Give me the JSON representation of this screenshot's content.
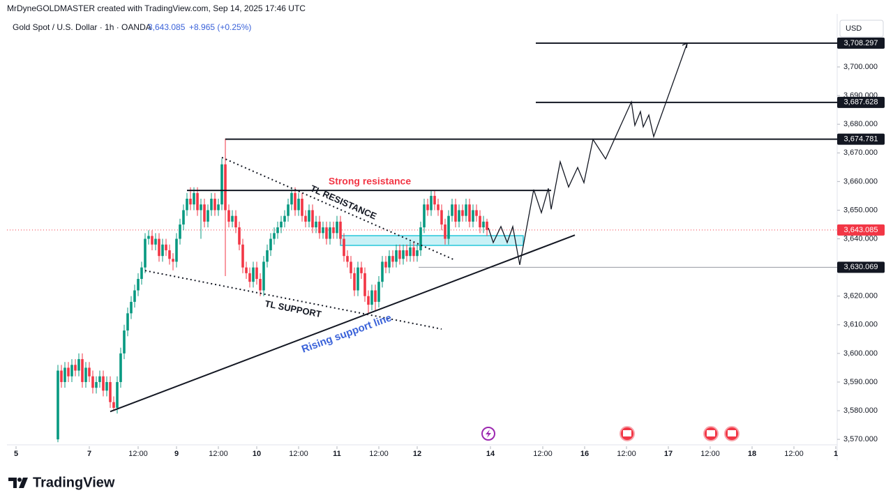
{
  "header": {
    "credit": "MrDyneGOLDMASTER created with TradingView.com, Sep 14, 2025 17:46 UTC",
    "symbol": "Gold Spot / U.S. Dollar · 1h · OANDA",
    "price": "3,643.085",
    "change": "+8.965 (+0.25%)",
    "currency": "USD"
  },
  "footer": {
    "logo": "TradingView"
  },
  "chart_data": {
    "type": "candlestick",
    "up_color": "#089981",
    "down_color": "#f23645",
    "xlim": [
      -2.6,
      235.4
    ],
    "ylim": [
      3567.6,
      3718.5
    ],
    "xticks": [
      {
        "value": 0,
        "label": "5"
      },
      {
        "value": 21,
        "label": "7"
      },
      {
        "value": 35,
        "label": "12:00"
      },
      {
        "value": 46,
        "label": "9"
      },
      {
        "value": 58,
        "label": "12:00"
      },
      {
        "value": 69,
        "label": "10"
      },
      {
        "value": 81,
        "label": "12:00"
      },
      {
        "value": 92,
        "label": "11"
      },
      {
        "value": 104,
        "label": "12:00"
      },
      {
        "value": 115,
        "label": "12"
      },
      {
        "value": 136,
        "label": "14"
      },
      {
        "value": 151,
        "label": "12:00"
      },
      {
        "value": 163,
        "label": "16"
      },
      {
        "value": 175,
        "label": "12:00"
      },
      {
        "value": 187,
        "label": "17"
      },
      {
        "value": 199,
        "label": "12:00"
      },
      {
        "value": 211,
        "label": "18"
      },
      {
        "value": 223,
        "label": "12:00"
      },
      {
        "value": 235,
        "label": "1"
      }
    ],
    "yticks": [
      {
        "value": 3570,
        "label": "3,570.000"
      },
      {
        "value": 3580,
        "label": "3,580.000"
      },
      {
        "value": 3590,
        "label": "3,590.000"
      },
      {
        "value": 3600,
        "label": "3,600.000"
      },
      {
        "value": 3610,
        "label": "3,610.000"
      },
      {
        "value": 3620,
        "label": "3,620.000"
      },
      {
        "value": 3630,
        "label": "3,630.000"
      },
      {
        "value": 3640,
        "label": "3,640.000"
      },
      {
        "value": 3650,
        "label": "3,650.000"
      },
      {
        "value": 3660,
        "label": "3,660.000"
      },
      {
        "value": 3670,
        "label": "3,670.000"
      },
      {
        "value": 3680,
        "label": "3,680.000"
      },
      {
        "value": 3690,
        "label": "3,690.000"
      },
      {
        "value": 3700,
        "label": "3,700.000"
      }
    ],
    "candles": [
      [
        12,
        3570,
        3596,
        3569,
        3594
      ],
      [
        13,
        3594,
        3596,
        3588,
        3590
      ],
      [
        14,
        3590,
        3597,
        3588,
        3595
      ],
      [
        15,
        3595,
        3597,
        3590,
        3592
      ],
      [
        16,
        3592,
        3598,
        3590,
        3596
      ],
      [
        17,
        3596,
        3598,
        3592,
        3594
      ],
      [
        18,
        3594,
        3600,
        3592,
        3598
      ],
      [
        19,
        3598,
        3600,
        3588,
        3590
      ],
      [
        20,
        3590,
        3597,
        3588,
        3595
      ],
      [
        21,
        3595,
        3597,
        3590,
        3592
      ],
      [
        22,
        3592,
        3594,
        3586,
        3588
      ],
      [
        23,
        3588,
        3592,
        3586,
        3590
      ],
      [
        24,
        3590,
        3594,
        3588,
        3592
      ],
      [
        25,
        3592,
        3594,
        3585,
        3587
      ],
      [
        26,
        3587,
        3592,
        3585,
        3590
      ],
      [
        27,
        3590,
        3592,
        3581,
        3583
      ],
      [
        28,
        3583,
        3585,
        3580,
        3581
      ],
      [
        29,
        3581,
        3592,
        3579,
        3590
      ],
      [
        30,
        3590,
        3602,
        3588,
        3600
      ],
      [
        31,
        3600,
        3610,
        3598,
        3608
      ],
      [
        32,
        3608,
        3616,
        3606,
        3614
      ],
      [
        33,
        3614,
        3620,
        3612,
        3618
      ],
      [
        34,
        3618,
        3624,
        3616,
        3622
      ],
      [
        35,
        3622,
        3628,
        3620,
        3626
      ],
      [
        36,
        3626,
        3632,
        3624,
        3630
      ],
      [
        37,
        3630,
        3642,
        3628,
        3640
      ],
      [
        38,
        3640,
        3643,
        3638,
        3641
      ],
      [
        39,
        3641,
        3643,
        3636,
        3638
      ],
      [
        40,
        3638,
        3642,
        3636,
        3640
      ],
      [
        41,
        3640,
        3642,
        3632,
        3634
      ],
      [
        42,
        3634,
        3640,
        3632,
        3638
      ],
      [
        43,
        3638,
        3640,
        3634,
        3636
      ],
      [
        44,
        3636,
        3638,
        3631,
        3633
      ],
      [
        45,
        3633,
        3635,
        3629,
        3632
      ],
      [
        46,
        3632,
        3642,
        3630,
        3640
      ],
      [
        47,
        3640,
        3647,
        3638,
        3645
      ],
      [
        48,
        3645,
        3652,
        3643,
        3650
      ],
      [
        49,
        3650,
        3656,
        3648,
        3654
      ],
      [
        50,
        3654,
        3658,
        3650,
        3652
      ],
      [
        51,
        3652,
        3658,
        3650,
        3656
      ],
      [
        52,
        3656,
        3658,
        3648,
        3650
      ],
      [
        53,
        3650,
        3654,
        3640,
        3652
      ],
      [
        54,
        3652,
        3654,
        3644,
        3646
      ],
      [
        55,
        3646,
        3652,
        3644,
        3650
      ],
      [
        56,
        3650,
        3656,
        3648,
        3654
      ],
      [
        57,
        3654,
        3656,
        3648,
        3650
      ],
      [
        58,
        3650,
        3654,
        3648,
        3652
      ],
      [
        59,
        3652,
        3668,
        3650,
        3666
      ],
      [
        60,
        3666,
        3675,
        3627,
        3650
      ],
      [
        61,
        3650,
        3652,
        3644,
        3646
      ],
      [
        62,
        3646,
        3650,
        3644,
        3648
      ],
      [
        63,
        3648,
        3650,
        3642,
        3644
      ],
      [
        64,
        3644,
        3646,
        3636,
        3638
      ],
      [
        65,
        3638,
        3640,
        3628,
        3630
      ],
      [
        66,
        3630,
        3632,
        3626,
        3628
      ],
      [
        67,
        3628,
        3630,
        3623,
        3625
      ],
      [
        68,
        3625,
        3632,
        3623,
        3630
      ],
      [
        69,
        3630,
        3632,
        3624,
        3626
      ],
      [
        70,
        3626,
        3628,
        3620,
        3622
      ],
      [
        71,
        3622,
        3634,
        3620,
        3632
      ],
      [
        72,
        3632,
        3638,
        3630,
        3636
      ],
      [
        73,
        3636,
        3642,
        3634,
        3640
      ],
      [
        74,
        3640,
        3644,
        3638,
        3642
      ],
      [
        75,
        3642,
        3646,
        3640,
        3644
      ],
      [
        76,
        3644,
        3648,
        3642,
        3646
      ],
      [
        77,
        3646,
        3650,
        3644,
        3648
      ],
      [
        78,
        3648,
        3654,
        3646,
        3652
      ],
      [
        79,
        3652,
        3658,
        3650,
        3656
      ],
      [
        80,
        3656,
        3658,
        3648,
        3650
      ],
      [
        81,
        3650,
        3656,
        3648,
        3654
      ],
      [
        82,
        3654,
        3656,
        3646,
        3648
      ],
      [
        83,
        3648,
        3650,
        3644,
        3646
      ],
      [
        84,
        3646,
        3652,
        3644,
        3650
      ],
      [
        85,
        3650,
        3652,
        3642,
        3644
      ],
      [
        86,
        3644,
        3648,
        3642,
        3646
      ],
      [
        87,
        3646,
        3648,
        3640,
        3642
      ],
      [
        88,
        3642,
        3646,
        3640,
        3644
      ],
      [
        89,
        3644,
        3646,
        3638,
        3640
      ],
      [
        90,
        3640,
        3646,
        3638,
        3644
      ],
      [
        91,
        3644,
        3646,
        3640,
        3642
      ],
      [
        92,
        3642,
        3648,
        3640,
        3646
      ],
      [
        93,
        3646,
        3648,
        3638,
        3640
      ],
      [
        94,
        3640,
        3642,
        3632,
        3634
      ],
      [
        95,
        3634,
        3636,
        3630,
        3632
      ],
      [
        96,
        3632,
        3634,
        3626,
        3628
      ],
      [
        97,
        3628,
        3630,
        3620,
        3622
      ],
      [
        98,
        3622,
        3632,
        3620,
        3630
      ],
      [
        99,
        3630,
        3632,
        3626,
        3628
      ],
      [
        100,
        3628,
        3630,
        3618,
        3620
      ],
      [
        101,
        3620,
        3622,
        3614,
        3617
      ],
      [
        102,
        3617,
        3624,
        3615,
        3622
      ],
      [
        103,
        3622,
        3624,
        3615,
        3618
      ],
      [
        104,
        3618,
        3627,
        3616,
        3625
      ],
      [
        105,
        3625,
        3634,
        3623,
        3632
      ],
      [
        106,
        3632,
        3634,
        3628,
        3630
      ],
      [
        107,
        3630,
        3636,
        3628,
        3634
      ],
      [
        108,
        3634,
        3636,
        3630,
        3632
      ],
      [
        109,
        3632,
        3638,
        3630,
        3636
      ],
      [
        110,
        3636,
        3638,
        3631,
        3633
      ],
      [
        111,
        3633,
        3638,
        3631,
        3636
      ],
      [
        112,
        3636,
        3638,
        3632,
        3634
      ],
      [
        113,
        3634,
        3639,
        3632,
        3637
      ],
      [
        114,
        3637,
        3639,
        3632,
        3634
      ],
      [
        115,
        3634,
        3638,
        3632,
        3636
      ],
      [
        116,
        3636,
        3646,
        3634,
        3644
      ],
      [
        117,
        3644,
        3654,
        3642,
        3652
      ],
      [
        118,
        3652,
        3654,
        3648,
        3650
      ],
      [
        119,
        3650,
        3657,
        3648,
        3655
      ],
      [
        120,
        3655,
        3657,
        3650,
        3652
      ],
      [
        121,
        3652,
        3654,
        3648,
        3650
      ],
      [
        122,
        3650,
        3652,
        3643,
        3645
      ],
      [
        123,
        3645,
        3647,
        3638,
        3640
      ],
      [
        124,
        3640,
        3650,
        3638,
        3648
      ],
      [
        125,
        3648,
        3654,
        3646,
        3652
      ],
      [
        126,
        3652,
        3654,
        3644,
        3646
      ],
      [
        127,
        3646,
        3652,
        3644,
        3650
      ],
      [
        128,
        3650,
        3652,
        3646,
        3648
      ],
      [
        129,
        3648,
        3654,
        3646,
        3652
      ],
      [
        130,
        3652,
        3654,
        3644,
        3646
      ],
      [
        131,
        3646,
        3652,
        3644,
        3650
      ],
      [
        132,
        3650,
        3652,
        3646,
        3648
      ],
      [
        133,
        3648,
        3650,
        3642,
        3644
      ],
      [
        134,
        3644,
        3648,
        3642,
        3646
      ],
      [
        135,
        3646,
        3647,
        3641,
        3643.085
      ]
    ],
    "last_price": {
      "value": 3643.085,
      "label": "3,643.085"
    },
    "levels": [
      {
        "value": 3708.297,
        "label": "3,708.297",
        "start": 149,
        "style": "thick"
      },
      {
        "value": 3687.628,
        "label": "3,687.628",
        "start": 149,
        "style": "thick"
      },
      {
        "value": 3674.781,
        "label": "3,674.781",
        "start": 60,
        "style": "thick"
      },
      {
        "value": 3630.069,
        "label": "3,630.069",
        "start": 115.4,
        "style": "thin"
      }
    ],
    "lines": [
      {
        "points": [
          [
            27,
            3579.7
          ],
          [
            160.2,
            3641.3
          ]
        ],
        "style": "solid"
      },
      {
        "points": [
          [
            37,
            3628.9
          ],
          [
            122,
            3608.5
          ]
        ],
        "style": "dotted"
      },
      {
        "points": [
          [
            59,
            3668.4
          ],
          [
            125.4,
            3632.8
          ]
        ],
        "style": "dotted"
      },
      {
        "points": [
          [
            49,
            3656.9
          ],
          [
            153.4,
            3656.9
          ]
        ],
        "style": "solid"
      }
    ],
    "zone": {
      "x": [
        93,
        145.4
      ],
      "y": [
        3637.7,
        3641.1
      ]
    },
    "projection": [
      [
        135.4,
        3643.8
      ],
      [
        136.8,
        3638.7
      ],
      [
        139,
        3644.3
      ],
      [
        140.8,
        3638.7
      ],
      [
        142.4,
        3644.3
      ],
      [
        144.4,
        3630.9
      ],
      [
        148.4,
        3657.2
      ],
      [
        150.6,
        3649.1
      ],
      [
        152.6,
        3657.6
      ],
      [
        153.4,
        3650.3
      ],
      [
        156,
        3666.9
      ],
      [
        158.4,
        3658.1
      ],
      [
        161,
        3664.9
      ],
      [
        162.8,
        3659.6
      ],
      [
        165.4,
        3674.7
      ],
      [
        169,
        3667.9
      ],
      [
        176.4,
        3687.8
      ],
      [
        177.4,
        3679.6
      ],
      [
        179,
        3684.4
      ],
      [
        179.8,
        3679.1
      ],
      [
        181.4,
        3683.2
      ],
      [
        182.8,
        3675.7
      ],
      [
        192.4,
        3708.3
      ]
    ],
    "annotations": [
      "Strong resistance",
      "TL RESISTANCE",
      "TL SUPPORT",
      "Rising support line"
    ]
  }
}
